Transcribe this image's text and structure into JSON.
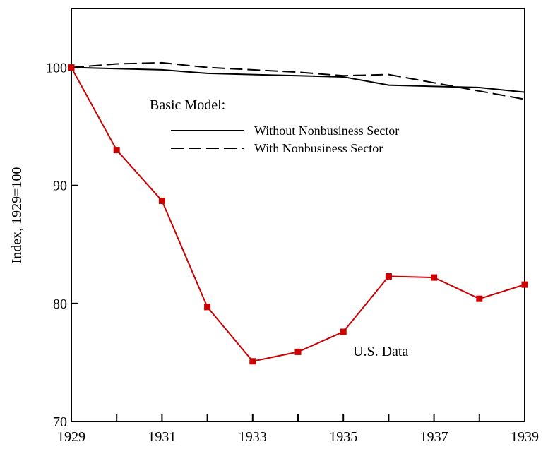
{
  "chart_data": {
    "type": "line",
    "y_label": "Index, 1929=100",
    "annotations": [
      "Basic Model:",
      "U.S. Data"
    ],
    "x": [
      1929,
      1930,
      1931,
      1932,
      1933,
      1934,
      1935,
      1936,
      1937,
      1938,
      1939
    ],
    "series": [
      {
        "name": "Without Nonbusiness Sector",
        "color": "#000000",
        "dash": false,
        "markers": false,
        "legend": true,
        "values": [
          100,
          99.9,
          99.8,
          99.5,
          99.4,
          99.3,
          99.2,
          98.5,
          98.4,
          98.3,
          97.9
        ]
      },
      {
        "name": "With Nonbusiness Sector",
        "color": "#000000",
        "dash": true,
        "markers": false,
        "legend": true,
        "values": [
          100,
          100.3,
          100.4,
          100.0,
          99.8,
          99.6,
          99.3,
          99.4,
          98.7,
          98.0,
          97.3
        ]
      },
      {
        "name": "U.S. Data",
        "color": "#cc0000",
        "dash": false,
        "markers": true,
        "legend": false,
        "values": [
          100,
          93.0,
          88.7,
          79.7,
          75.1,
          75.9,
          77.6,
          82.3,
          82.2,
          80.4,
          81.6
        ]
      }
    ],
    "xlim": [
      1929,
      1939
    ],
    "xticks": [
      1929,
      1931,
      1933,
      1935,
      1937,
      1939
    ],
    "xminor_ticks": [
      1930,
      1932,
      1934,
      1936,
      1938
    ],
    "ylim": [
      70,
      105
    ],
    "yticks": [
      70,
      80,
      90,
      100
    ],
    "grid": false
  }
}
